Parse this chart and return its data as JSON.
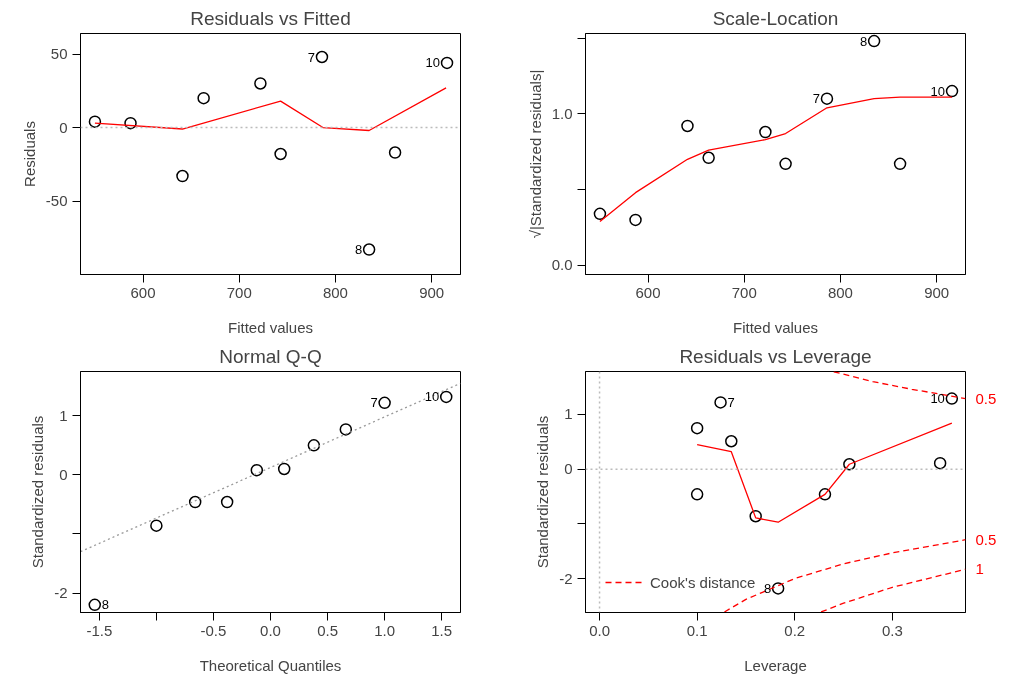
{
  "chart_data": [
    {
      "type": "scatter",
      "title": "Residuals vs Fitted",
      "xlabel": "Fitted values",
      "ylabel": "Residuals",
      "xlim": [
        535,
        930
      ],
      "ylim": [
        -100,
        64
      ],
      "xticks": [
        600,
        700,
        800,
        900
      ],
      "yticks": [
        -50,
        0,
        50
      ],
      "grid": false,
      "x": [
        550,
        587,
        641,
        663,
        722,
        743,
        786,
        835,
        862,
        916
      ],
      "series": [
        {
          "color": "#000000",
          "marker": "circle",
          "values": [
            4,
            3,
            -33,
            20,
            30,
            -18,
            48,
            -83,
            -17,
            44
          ]
        },
        {
          "type": "line",
          "color": "#ff0000",
          "marker": "none",
          "line_style": "solid",
          "x": [
            550,
            641,
            743,
            787,
            835,
            915
          ],
          "values": [
            3,
            -1,
            18,
            0,
            -2,
            27
          ]
        }
      ],
      "ref_lines": [
        {
          "axis": "y",
          "value": 0,
          "color": "#bbbbbb",
          "line_style": "dotted"
        }
      ],
      "annotations": [
        {
          "text": "7",
          "x": 786,
          "y": 48
        },
        {
          "text": "8",
          "x": 835,
          "y": -83
        },
        {
          "text": "10",
          "x": 916,
          "y": 44
        }
      ]
    },
    {
      "type": "scatter",
      "title": "Scale-Location",
      "xlabel": "Fitted values",
      "ylabel": "√|Standardized residuals|",
      "xlim": [
        535,
        930
      ],
      "ylim": [
        -0.06,
        1.53
      ],
      "xticks": [
        600,
        700,
        800,
        900
      ],
      "yticks": [
        {
          "value": 0,
          "label": "0.0"
        },
        {
          "value": 0.5,
          "label": null
        },
        {
          "value": 1,
          "label": "1.0"
        },
        {
          "value": 1.5,
          "label": null
        }
      ],
      "grid": false,
      "x": [
        550,
        587,
        641,
        663,
        722,
        743,
        786,
        835,
        862,
        916
      ],
      "series": [
        {
          "color": "#000000",
          "marker": "circle",
          "values": [
            0.34,
            0.3,
            0.92,
            0.71,
            0.88,
            0.67,
            1.1,
            1.48,
            0.67,
            1.15
          ]
        },
        {
          "type": "line",
          "color": "#ff0000",
          "marker": "none",
          "line_style": "solid",
          "values": [
            0.29,
            0.48,
            0.7,
            0.76,
            0.83,
            0.87,
            1.04,
            1.1,
            1.11,
            1.11
          ]
        }
      ],
      "annotations": [
        {
          "text": "7",
          "x": 786,
          "y": 1.1
        },
        {
          "text": "8",
          "x": 835,
          "y": 1.48
        },
        {
          "text": "10",
          "x": 916,
          "y": 1.15
        }
      ]
    },
    {
      "type": "scatter",
      "title": "Normal Q-Q",
      "xlabel": "Theoretical Quantiles",
      "ylabel": "Standardized residuals",
      "xlim": [
        -1.665,
        1.665
      ],
      "ylim": [
        -2.33,
        1.75
      ],
      "xticks": [
        -1.5,
        {
          "value": -1,
          "label": null
        },
        -0.5,
        {
          "value": 0,
          "label": "0.0"
        },
        0.5,
        {
          "value": 1,
          "label": "1.0"
        },
        1.5
      ],
      "yticks": [
        {
          "value": -2,
          "label": "-2"
        },
        {
          "value": -1,
          "label": null
        },
        0,
        1
      ],
      "grid": false,
      "x": [
        -1.54,
        -1.0,
        -0.66,
        -0.38,
        -0.12,
        0.12,
        0.38,
        0.66,
        1.0,
        1.54
      ],
      "series": [
        {
          "color": "#000000",
          "marker": "circle",
          "values": [
            -2.2,
            -0.86,
            -0.46,
            -0.46,
            0.08,
            0.1,
            0.5,
            0.77,
            1.22,
            1.32
          ]
        },
        {
          "type": "line",
          "color": "#999999",
          "marker": "none",
          "line_style": "dotted",
          "x": [
            -1.665,
            1.665
          ],
          "values": [
            -1.3,
            1.55
          ]
        }
      ],
      "annotations": [
        {
          "text": "8",
          "x": -1.54,
          "y": -2.2
        },
        {
          "text": "7",
          "x": 1.0,
          "y": 1.22
        },
        {
          "text": "10",
          "x": 1.54,
          "y": 1.32
        }
      ]
    },
    {
      "type": "scatter",
      "title": "Residuals vs Leverage",
      "xlabel": "Leverage",
      "ylabel": "Standardized residuals",
      "xlim": [
        -0.0144,
        0.375
      ],
      "ylim": [
        -2.62,
        1.785
      ],
      "xticks": [
        {
          "value": 0,
          "label": "0.0"
        },
        0.1,
        0.2,
        0.3
      ],
      "yticks": [
        {
          "value": -2,
          "label": "-2"
        },
        {
          "value": -1,
          "label": null
        },
        0,
        1
      ],
      "grid": false,
      "legend": "bottom left",
      "x": [
        0.1,
        0.1,
        0.124,
        0.135,
        0.16,
        0.183,
        0.231,
        0.256,
        0.349,
        0.361
      ],
      "series": [
        {
          "color": "#000000",
          "marker": "circle",
          "values": [
            0.75,
            -0.46,
            1.22,
            0.51,
            -0.86,
            -2.18,
            -0.46,
            0.09,
            0.11,
            1.29
          ]
        },
        {
          "type": "line",
          "color": "#ff0000",
          "marker": "none",
          "line_style": "solid",
          "x": [
            0.1,
            0.135,
            0.16,
            0.183,
            0.231,
            0.256,
            0.361
          ],
          "values": [
            0.45,
            0.32,
            -0.89,
            -0.97,
            -0.46,
            0.09,
            0.84
          ]
        },
        {
          "type": "line",
          "name": "Cook's distance",
          "color": "#ff0000",
          "marker": "none",
          "line_style": "dashed",
          "x": [
            0.128,
            0.15,
            0.2,
            0.25,
            0.3,
            0.375
          ],
          "values": [
            -2.61,
            -2.38,
            -2.0,
            -1.73,
            -1.53,
            -1.29
          ]
        },
        {
          "type": "line",
          "color": "#ff0000",
          "marker": "none",
          "line_style": "dashed",
          "x": [
            0.24,
            0.28,
            0.32,
            0.375
          ],
          "values": [
            1.78,
            1.6,
            1.46,
            1.29
          ]
        },
        {
          "type": "line",
          "color": "#ff0000",
          "marker": "none",
          "line_style": "dashed",
          "x": [
            0.227,
            0.25,
            0.3,
            0.375
          ],
          "values": [
            -2.61,
            -2.45,
            -2.16,
            -1.83
          ]
        }
      ],
      "ref_lines": [
        {
          "axis": "y",
          "value": 0,
          "color": "#bbbbbb",
          "line_style": "dotted"
        },
        {
          "axis": "x",
          "value": 0,
          "color": "#bbbbbb",
          "line_style": "dotted"
        }
      ],
      "annotations": [
        {
          "text": "7",
          "x": 0.124,
          "y": 1.22
        },
        {
          "text": "8",
          "x": 0.183,
          "y": -2.18
        },
        {
          "text": "10",
          "x": 0.361,
          "y": 1.29
        },
        {
          "text": "0.5",
          "x": 0.375,
          "y": 1.29
        },
        {
          "text": "0.5",
          "x": 0.375,
          "y": -1.29
        },
        {
          "text": "1",
          "x": 0.375,
          "y": -1.83
        }
      ]
    }
  ]
}
